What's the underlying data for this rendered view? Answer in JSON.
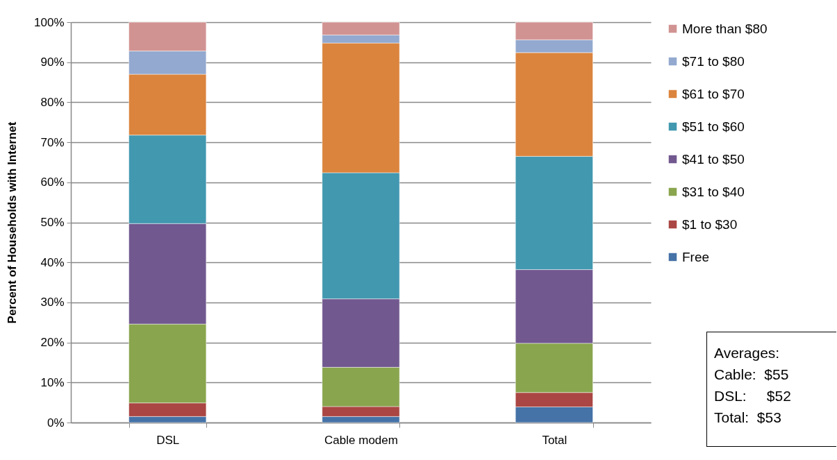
{
  "chart_data": {
    "type": "bar",
    "stacked": true,
    "ylabel": "Percent of Households with Internet",
    "categories": [
      "DSL",
      "Cable modem",
      "Total"
    ],
    "series": [
      {
        "name": "Free",
        "color": "#4572a7",
        "values": [
          1.5,
          1.5,
          3.9
        ]
      },
      {
        "name": "$1 to $30",
        "color": "#aa4643",
        "values": [
          3.4,
          2.5,
          3.6
        ]
      },
      {
        "name": "$31 to $40",
        "color": "#89a54e",
        "values": [
          19.7,
          9.8,
          12.3
        ]
      },
      {
        "name": "$41 to $50",
        "color": "#71588f",
        "values": [
          25.1,
          17.1,
          18.4
        ]
      },
      {
        "name": "$51 to $60",
        "color": "#4198af",
        "values": [
          22.1,
          31.5,
          28.3
        ]
      },
      {
        "name": "$61 to $70",
        "color": "#db843d",
        "values": [
          15.2,
          32.4,
          25.9
        ]
      },
      {
        "name": "$71 to $80",
        "color": "#93a9cf",
        "values": [
          5.8,
          2.0,
          3.2
        ]
      },
      {
        "name": "More than $80",
        "color": "#d19392",
        "values": [
          7.2,
          3.2,
          4.4
        ]
      }
    ],
    "ylim": [
      0,
      100
    ],
    "yticks": [
      {
        "value": 0,
        "label": "0%"
      },
      {
        "value": 10,
        "label": "10%"
      },
      {
        "value": 20,
        "label": "20%"
      },
      {
        "value": 30,
        "label": "30%"
      },
      {
        "value": 40,
        "label": "40%"
      },
      {
        "value": 50,
        "label": "50%"
      },
      {
        "value": 60,
        "label": "60%"
      },
      {
        "value": 70,
        "label": "70%"
      },
      {
        "value": 80,
        "label": "80%"
      },
      {
        "value": 90,
        "label": "90%"
      },
      {
        "value": 100,
        "label": "100%"
      }
    ],
    "grid": "y",
    "legend": "right",
    "annotations": [
      "Averages:",
      "Cable:  $55",
      "DSL:     $52",
      "Total:  $53"
    ]
  }
}
